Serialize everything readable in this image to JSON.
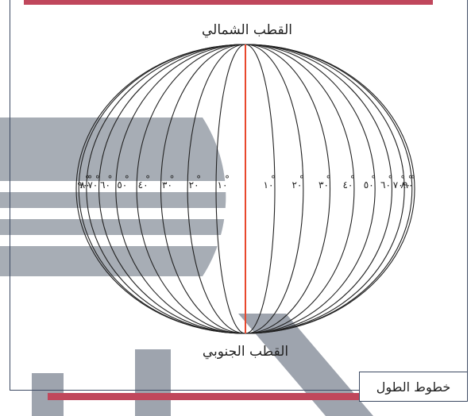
{
  "labels": {
    "north_pole": "القطب الشمالي",
    "south_pole": "القطب الجنوبي",
    "caption": "خطوط الطول"
  },
  "meridian_labels": {
    "east": [
      "١٠",
      "٢٠",
      "٣٠",
      "٤٠",
      "٥٠",
      "٦٠",
      "٧٠",
      "٨٠",
      "٩٠"
    ],
    "west": [
      "١٠",
      "٢٠",
      "٣٠",
      "٤٠",
      "٥٠",
      "٦٠",
      "٧٠",
      "٨٠",
      "٩٠"
    ]
  },
  "colors": {
    "prime_meridian": "#e8472c",
    "meridian": "#222222",
    "frame": "#3d4a63",
    "accent_bar": "#c0475c",
    "watermark": "#4f5a6b"
  }
}
